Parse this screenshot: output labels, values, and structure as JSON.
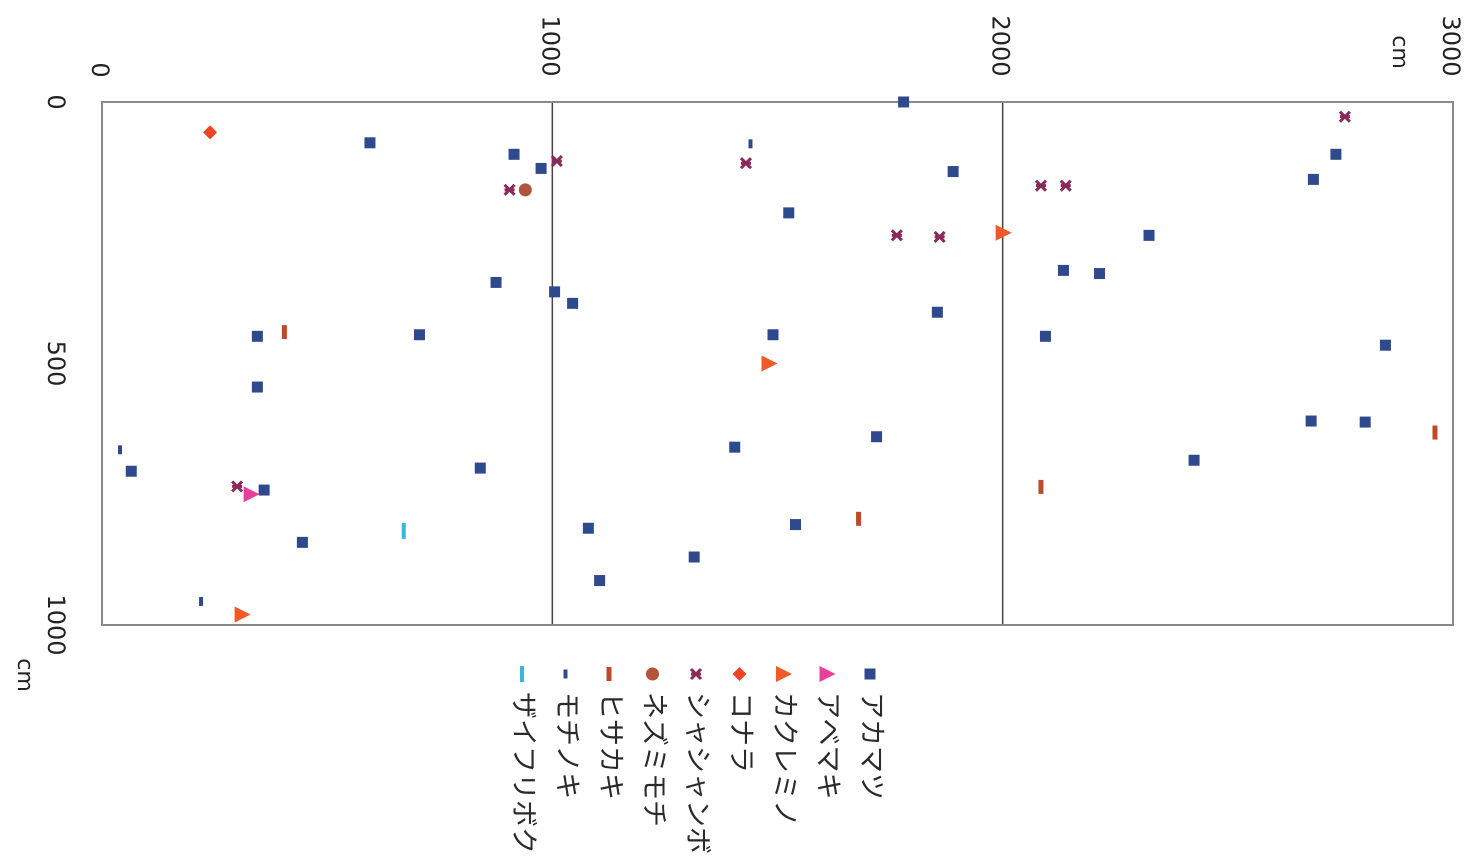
{
  "chart_data": {
    "type": "scatter",
    "title": "",
    "rotated": "90deg-clockwise",
    "x_axis": {
      "label": "cm",
      "range": [
        0,
        3000
      ],
      "ticks": [
        0,
        1000,
        2000,
        3000
      ],
      "gridlines": [
        1000,
        2000
      ]
    },
    "y_axis": {
      "label": "cm",
      "range": [
        0,
        1000
      ],
      "ticks": [
        0,
        500,
        1000
      ]
    },
    "legend_placement": "bottom",
    "series": [
      {
        "name": "アカマツ",
        "marker": "square",
        "color": "#2f4a8c",
        "points": [
          [
            1780,
            0
          ],
          [
            595,
            78
          ],
          [
            915,
            100
          ],
          [
            1890,
            133
          ],
          [
            2740,
            100
          ],
          [
            2690,
            148
          ],
          [
            1525,
            212
          ],
          [
            2325,
            255
          ],
          [
            2135,
            322
          ],
          [
            2215,
            328
          ],
          [
            1005,
            363
          ],
          [
            2850,
            465
          ],
          [
            1855,
            402
          ],
          [
            875,
            345
          ],
          [
            1045,
            385
          ],
          [
            2095,
            448
          ],
          [
            1490,
            445
          ],
          [
            705,
            445
          ],
          [
            345,
            448
          ],
          [
            345,
            545
          ],
          [
            2685,
            610
          ],
          [
            2805,
            612
          ],
          [
            1720,
            640
          ],
          [
            1405,
            660
          ],
          [
            2425,
            685
          ],
          [
            65,
            706
          ],
          [
            840,
            700
          ],
          [
            360,
            742
          ],
          [
            1540,
            808
          ],
          [
            1080,
            815
          ],
          [
            445,
            842
          ],
          [
            1315,
            870
          ],
          [
            1105,
            915
          ],
          [
            975,
            127
          ]
        ]
      },
      {
        "name": "アベマキ",
        "marker": "triangle",
        "color": "#e8409a",
        "points": [
          [
            330,
            750
          ]
        ]
      },
      {
        "name": "カクレミノ",
        "marker": "triangle",
        "color": "#f05a28",
        "points": [
          [
            2000,
            250
          ],
          [
            1480,
            500
          ],
          [
            310,
            980
          ]
        ]
      },
      {
        "name": "コナラ",
        "marker": "diamond",
        "color": "#ee4423",
        "points": [
          [
            240,
            58
          ]
        ]
      },
      {
        "name": "シャシャンボ",
        "marker": "x",
        "color": "#8a2a5a",
        "points": [
          [
            2760,
            28
          ],
          [
            1010,
            113
          ],
          [
            1430,
            117
          ],
          [
            2085,
            160
          ],
          [
            2140,
            160
          ],
          [
            905,
            168
          ],
          [
            1765,
            255
          ],
          [
            1860,
            258
          ],
          [
            300,
            735
          ]
        ]
      },
      {
        "name": "ネズミモチ",
        "marker": "circle",
        "color": "#b0553a",
        "points": [
          [
            940,
            168
          ]
        ]
      },
      {
        "name": "ヒサカキ",
        "marker": "vbar",
        "color": "#c0482c",
        "points": [
          [
            405,
            440
          ],
          [
            2960,
            632
          ],
          [
            2085,
            736
          ],
          [
            1680,
            797
          ]
        ]
      },
      {
        "name": "モチノキ",
        "marker": "tick",
        "color": "#2f4a8c",
        "points": [
          [
            1440,
            80
          ],
          [
            40,
            665
          ],
          [
            220,
            955
          ]
        ]
      },
      {
        "name": "ザイフリボク",
        "marker": "vbar-light",
        "color": "#35b7e0",
        "points": [
          [
            670,
            820
          ]
        ]
      }
    ]
  }
}
